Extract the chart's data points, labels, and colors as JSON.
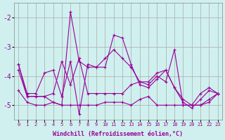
{
  "xlabel": "Windchill (Refroidissement éolien,°C)",
  "ylabel": "",
  "background_color": "#cff0ee",
  "line_color": "#990099",
  "grid_color": "#aaaaaa",
  "xlim": [
    -0.5,
    23.5
  ],
  "ylim": [
    -5.5,
    -1.5
  ],
  "yticks": [
    -5,
    -4,
    -3,
    -2
  ],
  "xticks": [
    0,
    1,
    2,
    3,
    4,
    5,
    6,
    7,
    8,
    9,
    10,
    11,
    12,
    13,
    14,
    15,
    16,
    17,
    18,
    19,
    20,
    21,
    22,
    23
  ],
  "series": [
    [
      -3.6,
      -4.7,
      -4.7,
      -4.7,
      -4.9,
      -5.0,
      -1.8,
      -3.5,
      -3.7,
      -3.7,
      -3.7,
      -2.6,
      -2.7,
      -3.6,
      -4.3,
      -4.4,
      -4.1,
      -3.8,
      -4.4,
      -4.9,
      -5.1,
      -4.8,
      -4.5,
      -4.6
    ],
    [
      -4.5,
      -4.9,
      -5.0,
      -5.0,
      -4.9,
      -5.0,
      -5.0,
      -5.0,
      -5.0,
      -5.0,
      -4.9,
      -4.9,
      -4.9,
      -5.0,
      -4.8,
      -4.7,
      -5.0,
      -5.0,
      -5.0,
      -5.0,
      -5.0,
      -5.0,
      -4.9,
      -4.6
    ],
    [
      -3.6,
      -4.6,
      -4.6,
      -3.9,
      -3.8,
      -4.7,
      -3.5,
      -5.3,
      -3.6,
      -3.7,
      -3.4,
      -3.1,
      -3.4,
      -3.7,
      -4.2,
      -4.3,
      -4.0,
      -4.2,
      -3.1,
      -5.0,
      -5.0,
      -4.6,
      -4.4,
      -4.6
    ],
    [
      -3.8,
      -4.7,
      -4.7,
      -4.7,
      -4.6,
      -3.5,
      -4.3,
      -3.4,
      -4.6,
      -4.6,
      -4.6,
      -4.6,
      -4.6,
      -4.3,
      -4.2,
      -4.2,
      -3.9,
      -3.8,
      -4.4,
      -4.8,
      -5.0,
      -5.0,
      -4.8,
      -4.6
    ]
  ]
}
